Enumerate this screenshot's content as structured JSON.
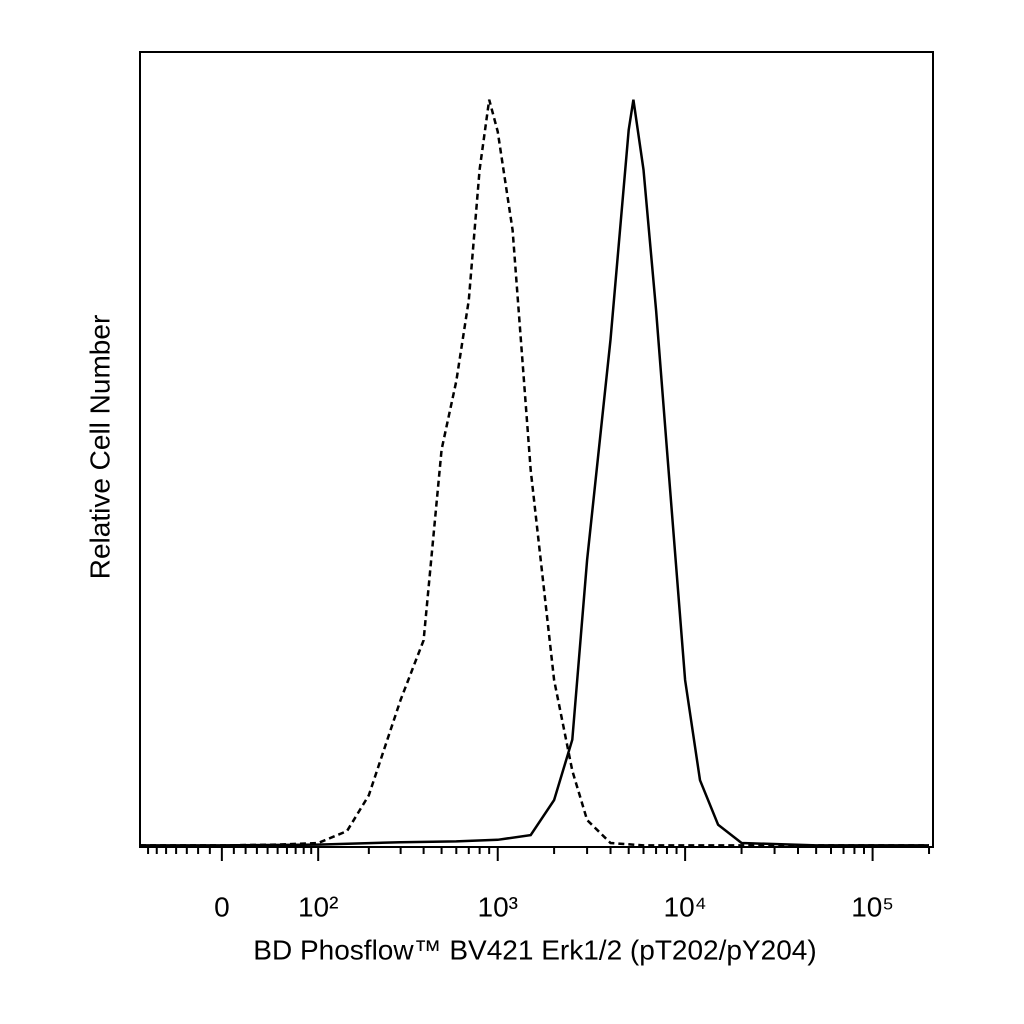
{
  "chart_data": {
    "type": "histogram-overlay",
    "x_label": "BD Phosflow™ BV421 Erk1/2 (pT202/pY204)",
    "y_label": "Relative Cell Number",
    "xscale": "biexponential",
    "xlim": [
      -80,
      210000
    ],
    "ylim": [
      0,
      100
    ],
    "xticks": [
      0,
      {
        "value": 100,
        "label": "10²"
      },
      {
        "value": 1000,
        "label": "10³"
      },
      {
        "value": 10000,
        "label": "10⁴"
      },
      {
        "value": 100000,
        "label": "10⁵"
      }
    ],
    "minor_xticks": [
      -70,
      -60,
      -50,
      -40,
      -30,
      -20,
      -10,
      10,
      20,
      30,
      40,
      50,
      60,
      70,
      80,
      90,
      200,
      300,
      400,
      500,
      600,
      700,
      800,
      900,
      2000,
      3000,
      4000,
      5000,
      6000,
      7000,
      8000,
      9000,
      20000,
      30000,
      40000,
      50000,
      60000,
      70000,
      80000,
      90000,
      200000
    ],
    "series": [
      {
        "color": "#000000",
        "dash": "dashed",
        "x": [
          -80,
          0,
          50,
          100,
          150,
          200,
          300,
          400,
          500,
          600,
          700,
          800,
          900,
          1000,
          1200,
          1500,
          2000,
          2500,
          3000,
          4000,
          6000,
          10000,
          30000,
          200000
        ],
        "values": [
          0.2,
          0.2,
          0.3,
          0.5,
          2,
          6.5,
          18.5,
          26,
          50,
          58.6,
          68.8,
          85.2,
          94,
          90,
          77.6,
          47.4,
          21,
          9.6,
          3.4,
          0.5,
          0.2,
          0.2,
          0.2,
          0.2
        ]
      },
      {
        "color": "#000000",
        "dash": "solid",
        "x": [
          -80,
          0,
          100,
          300,
          600,
          1000,
          1500,
          2000,
          2500,
          3000,
          4000,
          5000,
          5300,
          6000,
          7000,
          8000,
          10000,
          12000,
          15000,
          20000,
          50000,
          200000
        ],
        "values": [
          0.2,
          0.2,
          0.3,
          0.6,
          0.7,
          0.9,
          1.5,
          5.9,
          13.5,
          36.1,
          63.8,
          90.2,
          94,
          85.2,
          67.5,
          49.9,
          21,
          8.4,
          2.8,
          0.5,
          0.2,
          0.2
        ]
      }
    ]
  }
}
